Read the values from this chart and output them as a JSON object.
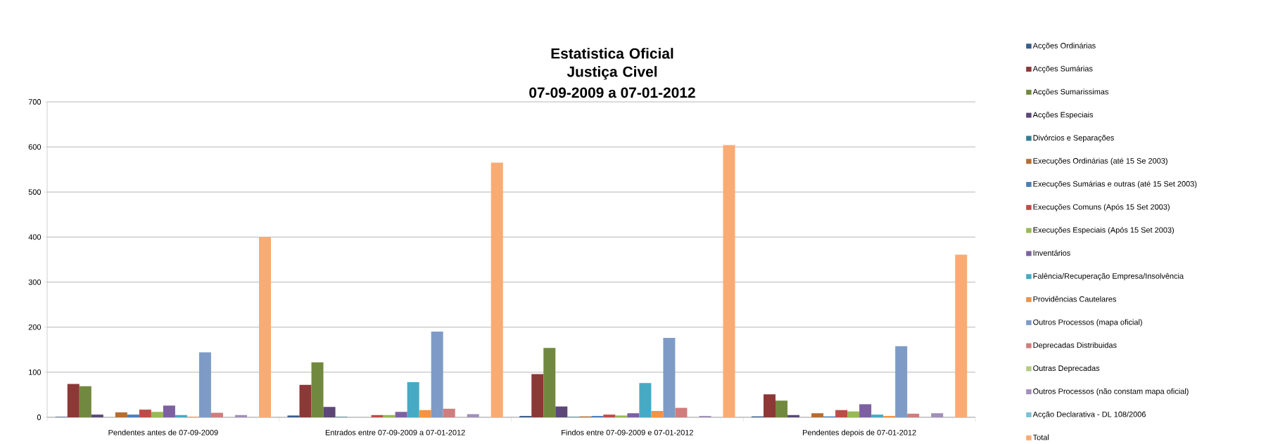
{
  "chart_data": {
    "type": "bar",
    "title": "Estatistica Oficial Justiça Civel",
    "subtitle": "07-09-2009 a 07-01-2012",
    "categories": [
      "Pendentes antes de 07-09-2009",
      "Entrados entre 07-09-2009 a 07-01-2012",
      "Findos entre 07-09-2009 e 07-01-2012",
      "Pendentes depois de 07-01-2012"
    ],
    "series": [
      {
        "name": "Acções Ordinárias",
        "color": "#385d8a",
        "values": [
          1,
          4,
          3,
          2
        ]
      },
      {
        "name": "Acções Sumárias",
        "color": "#8c3836",
        "values": [
          74,
          72,
          96,
          51
        ]
      },
      {
        "name": "Acções Sumarissimas",
        "color": "#71893f",
        "values": [
          69,
          122,
          154,
          37
        ]
      },
      {
        "name": "Acções Especiais",
        "color": "#5c4776",
        "values": [
          6,
          23,
          24,
          5
        ]
      },
      {
        "name": "Divórcios e Separações",
        "color": "#357d91",
        "values": [
          0,
          1,
          1,
          0
        ]
      },
      {
        "name": "Execuções Ordinárias (até 15 Se 2003)",
        "color": "#b66d31",
        "values": [
          11,
          0,
          2,
          9
        ]
      },
      {
        "name": "Execuções Sumárias e outras (até 15 Set 2003)",
        "color": "#4a7ebb",
        "values": [
          6,
          0,
          3,
          2
        ]
      },
      {
        "name": "Execuções Comuns (Após 15 Set 2003)",
        "color": "#be4b48",
        "values": [
          17,
          5,
          6,
          16
        ]
      },
      {
        "name": "Execuções Especiais (Após 15 Set 2003)",
        "color": "#98b954",
        "values": [
          12,
          5,
          4,
          13
        ]
      },
      {
        "name": "Inventários",
        "color": "#7d60a0",
        "values": [
          26,
          12,
          9,
          29
        ]
      },
      {
        "name": "Falência/Recuperação Empresa/Insolvência",
        "color": "#46aac5",
        "values": [
          5,
          78,
          76,
          6
        ]
      },
      {
        "name": "Providências Cautelares",
        "color": "#f69240",
        "values": [
          1,
          16,
          14,
          3
        ]
      },
      {
        "name": "Outros Processos (mapa oficial)",
        "color": "#7e9bc8",
        "values": [
          144,
          190,
          176,
          158
        ]
      },
      {
        "name": "Deprecadas Distribuidas",
        "color": "#ce7e7d",
        "values": [
          10,
          19,
          21,
          8
        ]
      },
      {
        "name": "Outras Deprecadas",
        "color": "#b3cc82",
        "values": [
          0,
          0,
          0,
          0
        ]
      },
      {
        "name": "Outros Processos (não constam mapa oficial)",
        "color": "#a28eba",
        "values": [
          5,
          7,
          3,
          9
        ]
      },
      {
        "name": "Acção Declarativa - DL 108/2006",
        "color": "#7dc1d6",
        "values": [
          0,
          0,
          0,
          0
        ]
      },
      {
        "name": "Total",
        "color": "#f9ab74",
        "values": [
          400,
          565,
          604,
          361
        ]
      }
    ],
    "ylim": [
      0,
      700
    ],
    "yticks": [
      0,
      100,
      200,
      300,
      400,
      500,
      600,
      700
    ],
    "grid": "y",
    "legend": "right"
  }
}
